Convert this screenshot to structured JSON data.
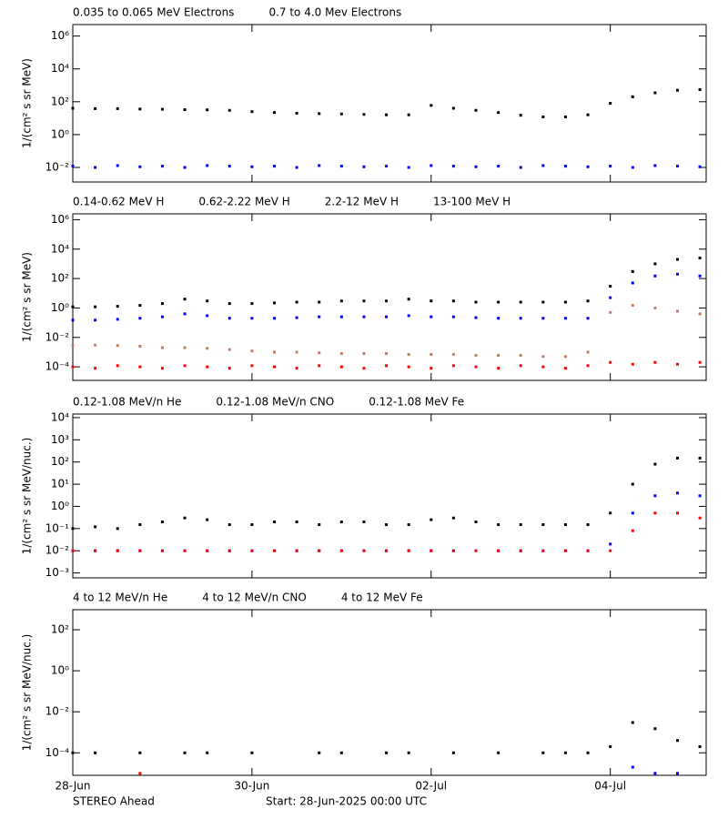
{
  "chart_data": [
    {
      "type": "scatter",
      "yscale": "log",
      "ylabel": "1/(cm² s sr MeV)",
      "xlim": [
        0,
        7.07
      ],
      "ylim": [
        0.0013,
        5000000
      ],
      "yticks": [
        {
          "value": 1000000,
          "label": "10⁶"
        },
        {
          "value": 10000,
          "label": "10⁴"
        },
        {
          "value": 100,
          "label": "10²"
        },
        {
          "value": 1,
          "label": "10⁰"
        },
        {
          "value": 0.01,
          "label": "10⁻²"
        }
      ],
      "x": [
        0,
        0.25,
        0.5,
        0.75,
        1,
        1.25,
        1.5,
        1.75,
        2,
        2.25,
        2.5,
        2.75,
        3,
        3.25,
        3.5,
        3.75,
        4,
        4.25,
        4.5,
        4.75,
        5,
        5.25,
        5.5,
        5.75,
        6,
        6.25,
        6.5,
        6.75,
        7
      ],
      "series": [
        {
          "name": "0.035 to 0.065 MeV Electrons",
          "color": "#000000",
          "values": [
            40,
            38,
            38,
            36,
            35,
            33,
            32,
            30,
            25,
            22,
            20,
            19,
            18,
            17,
            16,
            16,
            60,
            40,
            30,
            22,
            15,
            12,
            12,
            16,
            80,
            200,
            350,
            500,
            550
          ]
        },
        {
          "name": "0.7 to 4.0 Mev Electrons",
          "color": "#0000ff",
          "values": [
            0.012,
            0.01,
            0.013,
            0.011,
            0.012,
            0.01,
            0.013,
            0.012,
            0.011,
            0.012,
            0.01,
            0.013,
            0.012,
            0.011,
            0.012,
            0.01,
            0.013,
            0.012,
            0.011,
            0.012,
            0.01,
            0.013,
            0.012,
            0.011,
            0.012,
            0.01,
            0.013,
            0.012,
            0.011
          ]
        }
      ]
    },
    {
      "type": "scatter",
      "yscale": "log",
      "ylabel": "1/(cm² s sr MeV)",
      "xlim": [
        0,
        7.07
      ],
      "ylim": [
        1.2e-05,
        2500000
      ],
      "yticks": [
        {
          "value": 1000000,
          "label": "10⁶"
        },
        {
          "value": 10000,
          "label": "10⁴"
        },
        {
          "value": 100,
          "label": "10²"
        },
        {
          "value": 1,
          "label": "10⁰"
        },
        {
          "value": 0.01,
          "label": "10⁻²"
        },
        {
          "value": 0.0001,
          "label": "10⁻⁴"
        }
      ],
      "x": [
        0,
        0.25,
        0.5,
        0.75,
        1,
        1.25,
        1.5,
        1.75,
        2,
        2.25,
        2.5,
        2.75,
        3,
        3.25,
        3.5,
        3.75,
        4,
        4.25,
        4.5,
        4.75,
        5,
        5.25,
        5.5,
        5.75,
        6,
        6.25,
        6.5,
        6.75,
        7
      ],
      "series": [
        {
          "name": "0.14-0.62 MeV H",
          "color": "#000000",
          "values": [
            1.2,
            1.2,
            1.3,
            1.5,
            2,
            4,
            3,
            2,
            2,
            2.2,
            2.5,
            2.5,
            3,
            3,
            3,
            4,
            3,
            3,
            2.5,
            2.5,
            2.5,
            2.5,
            2.5,
            3,
            30,
            300,
            1000,
            2000,
            2500
          ]
        },
        {
          "name": "0.62-2.22 MeV H",
          "color": "#0000ff",
          "values": [
            0.15,
            0.15,
            0.17,
            0.2,
            0.25,
            0.4,
            0.3,
            0.2,
            0.2,
            0.2,
            0.22,
            0.25,
            0.25,
            0.25,
            0.25,
            0.3,
            0.25,
            0.25,
            0.22,
            0.2,
            0.2,
            0.2,
            0.2,
            0.2,
            5,
            50,
            150,
            200,
            150
          ]
        },
        {
          "name": "2.2-12 MeV H",
          "color": "#c08068",
          "values": [
            0.003,
            0.003,
            0.0028,
            0.0025,
            0.002,
            0.002,
            0.0018,
            0.0015,
            0.0012,
            0.001,
            0.001,
            0.0009,
            0.0008,
            0.0008,
            0.0008,
            0.0007,
            0.0007,
            0.0007,
            0.0006,
            0.0006,
            0.0006,
            0.0005,
            0.0005,
            0.001,
            0.5,
            1.5,
            1,
            0.6,
            0.4
          ]
        },
        {
          "name": "13-100 MeV H",
          "color": "#ff0000",
          "values": [
            0.0001,
            8e-05,
            0.00012,
            0.0001,
            8e-05,
            0.00012,
            0.0001,
            8e-05,
            0.00012,
            0.0001,
            8e-05,
            0.00012,
            0.0001,
            8e-05,
            0.00012,
            0.0001,
            8e-05,
            0.00012,
            0.0001,
            8e-05,
            0.00012,
            0.0001,
            8e-05,
            0.00012,
            0.0002,
            0.00015,
            0.0002,
            0.00015,
            0.0002
          ]
        }
      ]
    },
    {
      "type": "scatter",
      "yscale": "log",
      "ylabel": "1/(cm² s sr MeV/nuc.)",
      "xlim": [
        0,
        7.07
      ],
      "ylim": [
        0.0006,
        14500
      ],
      "yticks": [
        {
          "value": 10000,
          "label": "10⁴"
        },
        {
          "value": 1000,
          "label": "10³"
        },
        {
          "value": 100,
          "label": "10²"
        },
        {
          "value": 10,
          "label": "10¹"
        },
        {
          "value": 1,
          "label": "10⁰"
        },
        {
          "value": 0.1,
          "label": "10⁻¹"
        },
        {
          "value": 0.01,
          "label": "10⁻²"
        },
        {
          "value": 0.001,
          "label": "10⁻³"
        }
      ],
      "x": [
        0,
        0.25,
        0.5,
        0.75,
        1,
        1.25,
        1.5,
        1.75,
        2,
        2.25,
        2.5,
        2.75,
        3,
        3.25,
        3.5,
        3.75,
        4,
        4.25,
        4.5,
        4.75,
        5,
        5.25,
        5.5,
        5.75,
        6,
        6.25,
        6.5,
        6.75,
        7
      ],
      "series": [
        {
          "name": "0.12-1.08 MeV/n He",
          "color": "#000000",
          "values": [
            0.1,
            0.12,
            0.1,
            0.15,
            0.2,
            0.3,
            0.25,
            0.15,
            0.15,
            0.2,
            0.2,
            0.15,
            0.2,
            0.2,
            0.15,
            0.15,
            0.25,
            0.3,
            0.2,
            0.15,
            0.15,
            0.15,
            0.15,
            0.15,
            0.5,
            10,
            80,
            150,
            150
          ]
        },
        {
          "name": "0.12-1.08 MeV/n CNO",
          "color": "#0000ff",
          "values": [
            0.01,
            0.01,
            0.01,
            0.01,
            0.01,
            0.01,
            0.01,
            0.01,
            0.01,
            0.01,
            0.01,
            0.01,
            0.01,
            0.01,
            0.01,
            0.01,
            0.01,
            0.01,
            0.01,
            0.01,
            0.01,
            0.01,
            0.01,
            0.01,
            0.02,
            0.5,
            3,
            4,
            3
          ]
        },
        {
          "name": "0.12-1.08 MeV Fe",
          "color": "#ff0000",
          "values": [
            0.01,
            0.01,
            0.01,
            0.01,
            0.01,
            0.01,
            0.01,
            0.01,
            0.01,
            0.01,
            0.01,
            0.01,
            0.01,
            0.01,
            0.01,
            0.01,
            0.01,
            0.01,
            0.01,
            0.01,
            0.01,
            0.01,
            0.01,
            0.01,
            0.01,
            0.08,
            0.5,
            0.5,
            0.3
          ]
        }
      ]
    },
    {
      "type": "scatter",
      "yscale": "log",
      "ylabel": "1/(cm² s sr MeV/nuc.)",
      "xlim": [
        0,
        7.07
      ],
      "ylim": [
        8e-06,
        950
      ],
      "yticks": [
        {
          "value": 100,
          "label": "10²"
        },
        {
          "value": 1,
          "label": "10⁰"
        },
        {
          "value": 0.01,
          "label": "10⁻²"
        },
        {
          "value": 0.0001,
          "label": "10⁻⁴"
        }
      ],
      "xticks": [
        {
          "value": 0,
          "label": "28-Jun"
        },
        {
          "value": 2,
          "label": "30-Jun"
        },
        {
          "value": 4,
          "label": "02-Jul"
        },
        {
          "value": 6,
          "label": "04-Jul"
        }
      ],
      "annotations": [
        "STEREO Ahead",
        "Start: 28-Jun-2025 00:00 UTC"
      ],
      "x": [
        0,
        0.25,
        0.5,
        0.75,
        1,
        1.25,
        1.5,
        1.75,
        2,
        2.25,
        2.5,
        2.75,
        3,
        3.25,
        3.5,
        3.75,
        4,
        4.25,
        4.5,
        4.75,
        5,
        5.25,
        5.5,
        5.75,
        6,
        6.25,
        6.5,
        6.75,
        7
      ],
      "series": [
        {
          "name": "4 to 12 MeV/n He",
          "color": "#000000",
          "values": [
            0.0001,
            0.0001,
            null,
            0.0001,
            null,
            0.0001,
            0.0001,
            null,
            0.0001,
            null,
            null,
            0.0001,
            0.0001,
            null,
            0.0001,
            0.0001,
            null,
            0.0001,
            null,
            0.0001,
            null,
            0.0001,
            0.0001,
            0.0001,
            0.0002,
            0.003,
            0.0015,
            0.0004,
            0.0002
          ]
        },
        {
          "name": "4 to 12 MeV/n CNO",
          "color": "#0000ff",
          "values": [
            null,
            null,
            null,
            null,
            null,
            null,
            null,
            null,
            null,
            null,
            null,
            null,
            null,
            null,
            null,
            null,
            null,
            null,
            null,
            null,
            null,
            null,
            null,
            null,
            null,
            2e-05,
            1e-05,
            1e-05,
            null
          ]
        },
        {
          "name": "4 to 12 MeV Fe",
          "color": "#ff0000",
          "values": [
            null,
            null,
            null,
            1e-05,
            null,
            null,
            null,
            null,
            null,
            null,
            null,
            null,
            null,
            null,
            null,
            null,
            null,
            null,
            null,
            null,
            null,
            null,
            null,
            null,
            null,
            null,
            null,
            null,
            null
          ]
        }
      ]
    }
  ]
}
